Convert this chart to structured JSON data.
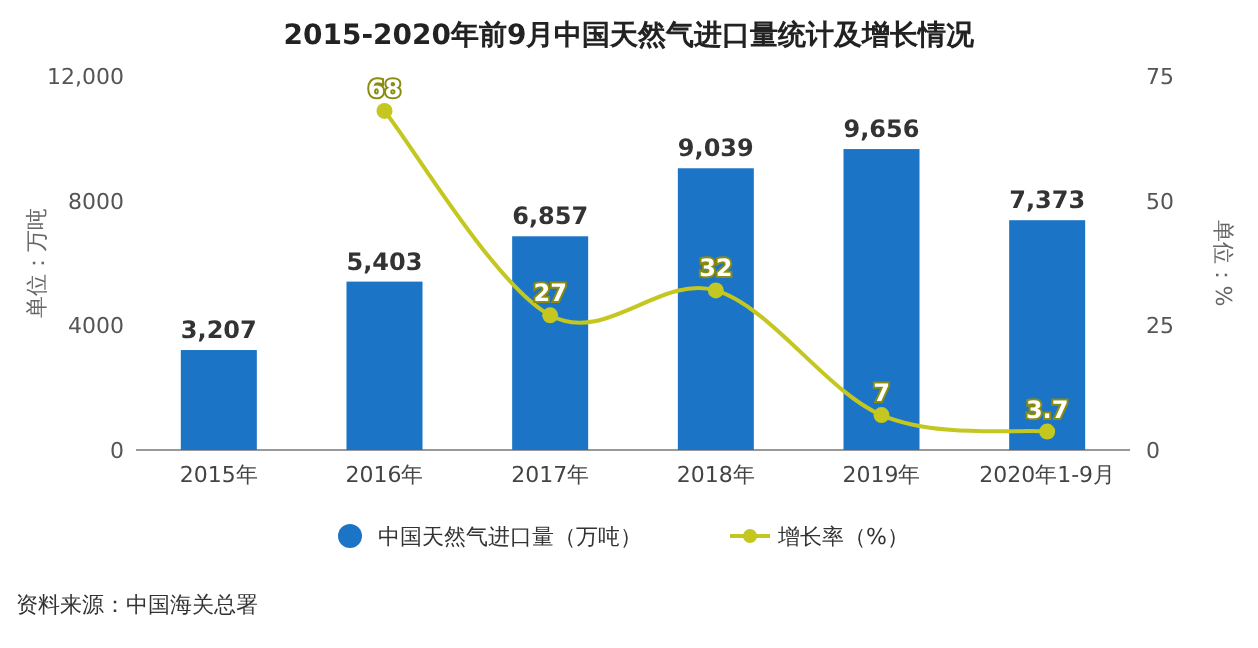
{
  "chart_data": {
    "type": "bar",
    "title": "2015-2020年前9月中国天然气进口量统计及增长情况",
    "categories": [
      "2015年",
      "2016年",
      "2017年",
      "2018年",
      "2019年",
      "2020年1-9月"
    ],
    "series": [
      {
        "name": "中国天然气进口量（万吨）",
        "color": "#1b74c5",
        "values": [
          3207,
          5403,
          6857,
          9039,
          9656,
          7373
        ],
        "value_labels": [
          "3,207",
          "5,403",
          "6,857",
          "9,039",
          "9,656",
          "7,373"
        ]
      },
      {
        "name": "增长率（%）",
        "type": "line",
        "axis": "y2",
        "color": "#c3c71f",
        "marker": "circle",
        "values": [
          null,
          68,
          27,
          32,
          7,
          3.7
        ],
        "value_labels": [
          null,
          "68",
          "27",
          "32",
          "7",
          "3.7"
        ]
      }
    ],
    "ylabel": "单位：万吨",
    "y2label": "单位：%",
    "ylim": [
      0,
      12000
    ],
    "yticks": [
      0,
      4000,
      8000,
      {
        "value": 12000,
        "label": "12,000"
      }
    ],
    "y2lim": [
      0,
      75
    ],
    "y2ticks": [
      0,
      25,
      50,
      75
    ],
    "legend": "bottom",
    "annotations": [
      "资料来源：中国海关总署"
    ]
  }
}
